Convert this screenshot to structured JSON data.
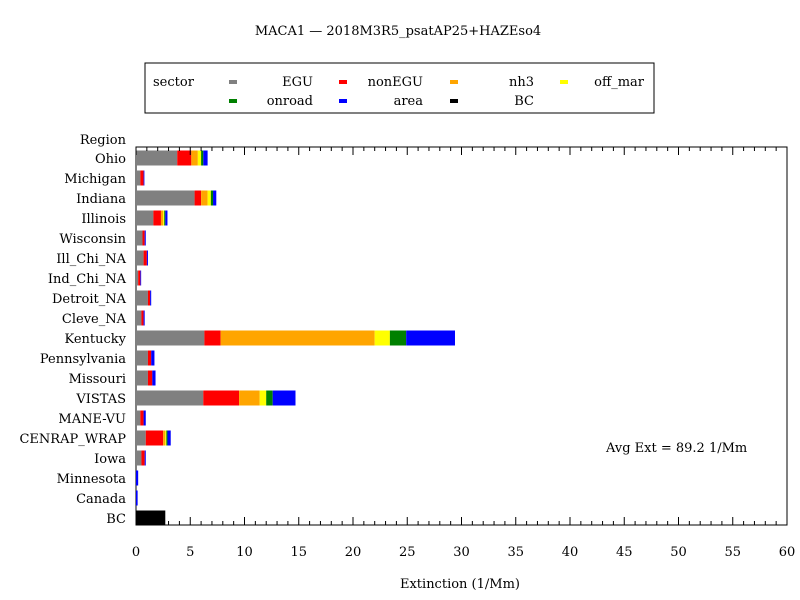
{
  "chart_data": {
    "type": "bar",
    "orientation": "horizontal",
    "stacked": true,
    "title": "MACA1  —  2018M3R5_psatAP25+HAZEso4",
    "xlabel": "Extinction  (1/Mm)",
    "ylabel": "Region",
    "xlim": [
      0,
      60
    ],
    "x_ticks": [
      0,
      5,
      10,
      15,
      20,
      25,
      30,
      35,
      40,
      45,
      50,
      55,
      60
    ],
    "grid": false,
    "annotation": "Avg Ext =  89.2  1/Mm",
    "legend": {
      "title": "sector",
      "placement": "top",
      "entries": [
        {
          "name": "EGU",
          "color": "#808080"
        },
        {
          "name": "nonEGU",
          "color": "#ff0000"
        },
        {
          "name": "nh3",
          "color": "#ffa500"
        },
        {
          "name": "off_mar",
          "color": "#ffff00"
        },
        {
          "name": "onroad",
          "color": "#008000"
        },
        {
          "name": "area",
          "color": "#0000ff"
        },
        {
          "name": "BC",
          "color": "#000000"
        }
      ]
    },
    "categories": [
      "Ohio",
      "Michigan",
      "Indiana",
      "Illinois",
      "Wisconsin",
      "Ill_Chi_NA",
      "Ind_Chi_NA",
      "Detroit_NA",
      "Cleve_NA",
      "Kentucky",
      "Pennsylvania",
      "Missouri",
      "VISTAS",
      "MANE-VU",
      "CENRAP_WRAP",
      "Iowa",
      "Minnesota",
      "Canada",
      "BC"
    ],
    "series": [
      {
        "name": "EGU",
        "color": "#808080",
        "values": [
          3.8,
          0.4,
          5.4,
          1.6,
          0.6,
          0.7,
          0.2,
          1.1,
          0.5,
          6.3,
          1.1,
          1.1,
          6.2,
          0.4,
          0.9,
          0.5,
          0,
          0,
          0
        ]
      },
      {
        "name": "nonEGU",
        "color": "#ff0000",
        "values": [
          1.3,
          0.3,
          0.6,
          0.7,
          0.2,
          0.3,
          0.2,
          0.2,
          0.2,
          1.5,
          0.3,
          0.4,
          3.3,
          0.3,
          1.6,
          0.3,
          0,
          0,
          0
        ]
      },
      {
        "name": "nh3",
        "color": "#ffa500",
        "values": [
          0.6,
          0,
          0.6,
          0.2,
          0,
          0,
          0,
          0,
          0,
          14.2,
          0,
          0,
          1.9,
          0,
          0.2,
          0,
          0,
          0,
          0
        ]
      },
      {
        "name": "off_mar",
        "color": "#ffff00",
        "values": [
          0.3,
          0,
          0.3,
          0.1,
          0,
          0,
          0,
          0,
          0,
          1.4,
          0,
          0,
          0.6,
          0,
          0.1,
          0,
          0,
          0,
          0
        ]
      },
      {
        "name": "onroad",
        "color": "#008000",
        "values": [
          0.2,
          0,
          0.2,
          0.1,
          0,
          0,
          0,
          0,
          0,
          1.5,
          0,
          0,
          0.6,
          0,
          0.1,
          0,
          0,
          0,
          0
        ]
      },
      {
        "name": "area",
        "color": "#0000ff",
        "values": [
          0.4,
          0.05,
          0.3,
          0.2,
          0.1,
          0.1,
          0.05,
          0.1,
          0.1,
          4.5,
          0.3,
          0.3,
          2.1,
          0.2,
          0.3,
          0.1,
          0.2,
          0.15,
          0
        ]
      },
      {
        "name": "BC",
        "color": "#000000",
        "values": [
          0,
          0,
          0,
          0,
          0,
          0,
          0,
          0,
          0,
          0,
          0,
          0,
          0,
          0,
          0,
          0,
          0,
          0,
          2.7
        ]
      }
    ]
  }
}
